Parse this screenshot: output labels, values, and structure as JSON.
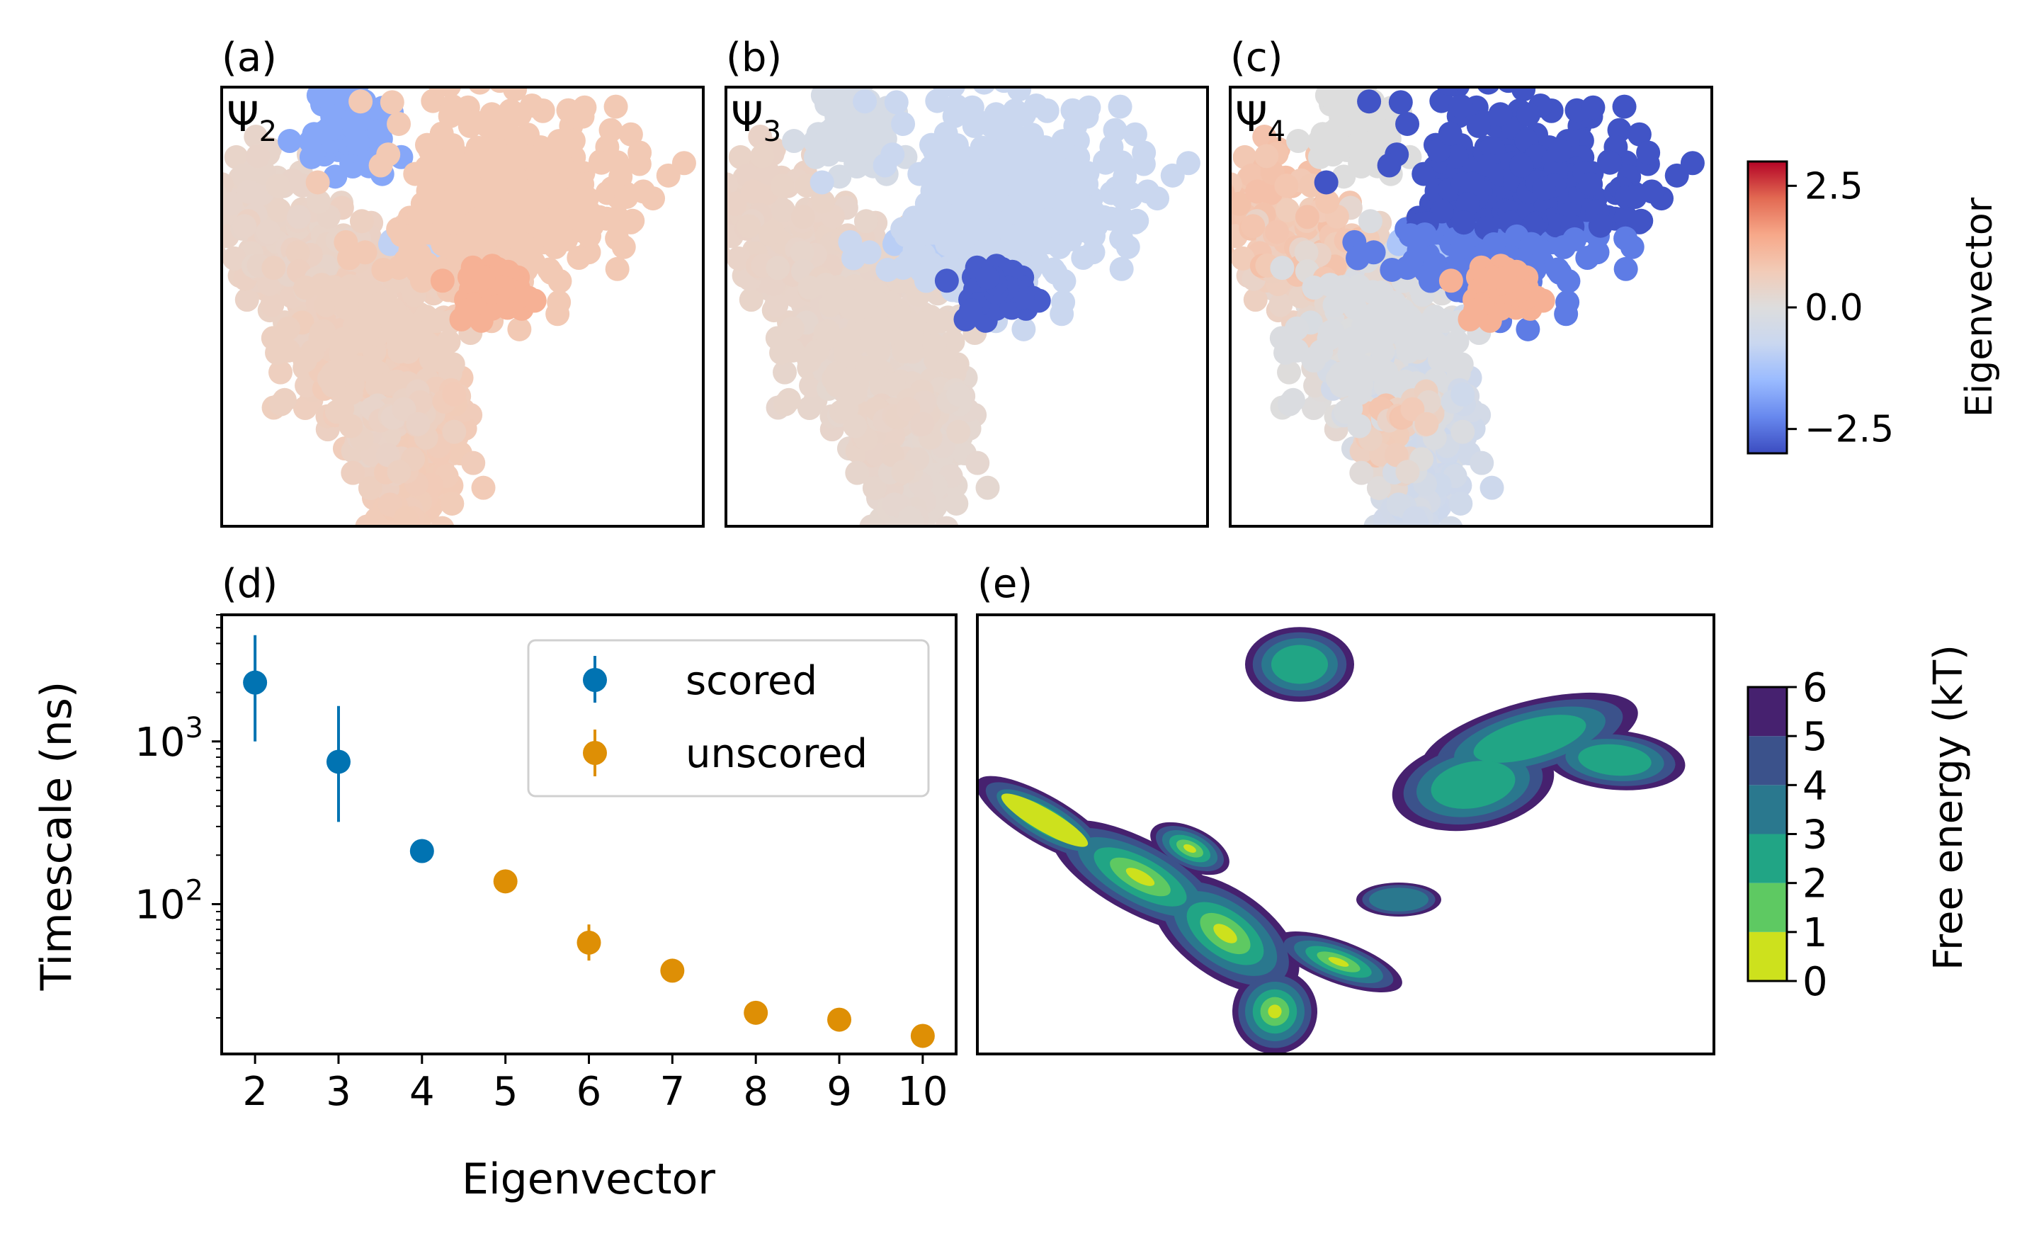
{
  "panels": {
    "a": {
      "label": "(a)",
      "psi": "Ψ",
      "sub": "2"
    },
    "b": {
      "label": "(b)",
      "psi": "Ψ",
      "sub": "3"
    },
    "c": {
      "label": "(c)",
      "psi": "Ψ",
      "sub": "4"
    },
    "d": {
      "label": "(d)"
    },
    "e": {
      "label": "(e)"
    }
  },
  "eigen_colorbar": {
    "label": "Eigenvector",
    "range": [
      -3.0,
      3.0
    ],
    "ticks": [
      {
        "value": 2.5,
        "label": "2.5"
      },
      {
        "value": 0.0,
        "label": "0.0"
      },
      {
        "value": -2.5,
        "label": "−2.5"
      }
    ],
    "colormap": [
      "#3b4cc0",
      "#6788ee",
      "#9abbff",
      "#c9d7f0",
      "#dddddd",
      "#f2cbb7",
      "#f7a889",
      "#e26952",
      "#b40426"
    ]
  },
  "energy_colorbar": {
    "label": "Free energy (kT)",
    "ticks": [
      "0",
      "1",
      "2",
      "3",
      "4",
      "5",
      "6"
    ],
    "levels": [
      "#cde11d",
      "#5ec962",
      "#21a585",
      "#2a788e",
      "#3b528b",
      "#46216f"
    ]
  },
  "clusters": [
    {
      "id": "main",
      "psi2": 0.55,
      "psi3": 0.35,
      "psi4": -0.1
    },
    {
      "id": "upper-right",
      "psi2": 0.8,
      "psi3": -0.7,
      "psi4": -2.9
    },
    {
      "id": "top",
      "psi2": -1.8,
      "psi3": -0.3,
      "psi4": 0.0
    },
    {
      "id": "small",
      "psi2": 1.3,
      "psi3": -2.8,
      "psi4": 1.3
    },
    {
      "id": "bridge",
      "psi2": -0.9,
      "psi3": -1.0,
      "psi4": -1.2
    }
  ],
  "chart_data": {
    "type": "scatter",
    "xlabel": "Eigenvector",
    "ylabel": "Timescale (ns)",
    "yscale": "log",
    "ylim": [
      12,
      6000
    ],
    "xlim": [
      1.6,
      10.4
    ],
    "x_ticks": [
      "2",
      "3",
      "4",
      "5",
      "6",
      "7",
      "8",
      "9",
      "10"
    ],
    "y_ticks": [
      {
        "value": 1000,
        "base": "10",
        "exp": "3"
      },
      {
        "value": 100,
        "base": "10",
        "exp": "2"
      }
    ],
    "legend_position": "top-right",
    "series": [
      {
        "name": "scored",
        "color": "#0173b2",
        "points": [
          {
            "x": 2,
            "y": 2300,
            "lo": 1000,
            "hi": 4500
          },
          {
            "x": 3,
            "y": 750,
            "lo": 320,
            "hi": 1650
          },
          {
            "x": 4,
            "y": 212,
            "lo": 180,
            "hi": 240
          }
        ]
      },
      {
        "name": "unscored",
        "color": "#de8f05",
        "points": [
          {
            "x": 5,
            "y": 138,
            "lo": 128,
            "hi": 150
          },
          {
            "x": 6,
            "y": 58,
            "lo": 45,
            "hi": 75
          },
          {
            "x": 7,
            "y": 39,
            "lo": 37,
            "hi": 41
          },
          {
            "x": 8,
            "y": 21.5,
            "lo": 20.5,
            "hi": 22.5
          },
          {
            "x": 9,
            "y": 19.5,
            "lo": 18.5,
            "hi": 20.5
          },
          {
            "x": 10,
            "y": 15.5,
            "lo": 14.8,
            "hi": 16.2
          }
        ]
      }
    ]
  }
}
